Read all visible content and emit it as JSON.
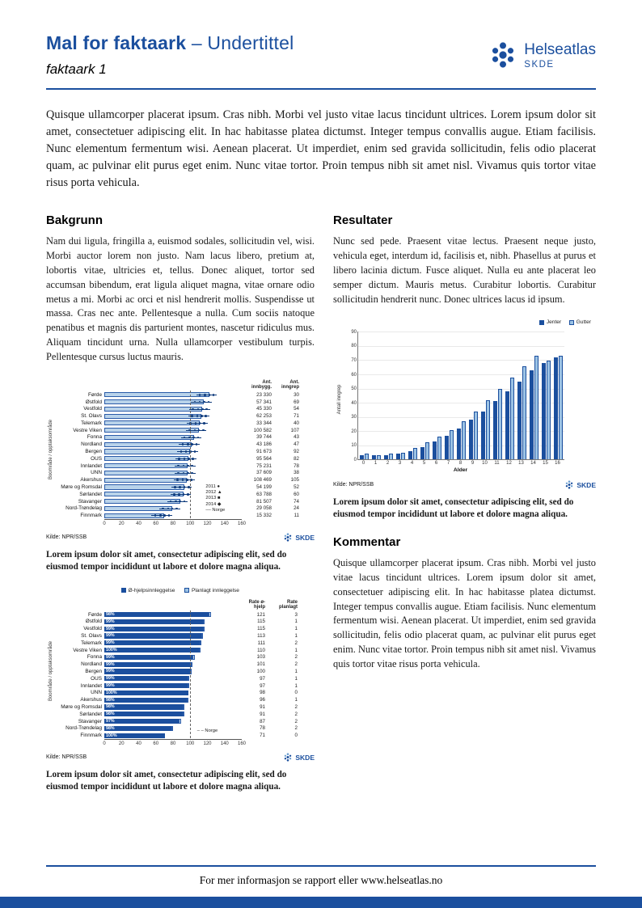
{
  "page": {
    "header": {
      "title_main": "Mal for faktaark",
      "title_rest": "– Undertittel",
      "subtitle": "faktaark 1",
      "logo": {
        "name": "Helseatlas",
        "sub": "SKDE"
      }
    },
    "skde_label": "SKDE",
    "intro": "Quisque ullamcorper placerat ipsum. Cras nibh. Morbi vel justo vitae lacus tincidunt ultrices. Lorem ipsum dolor sit amet, consectetuer adipiscing elit. In hac habitasse platea dictumst. Integer tempus convallis augue. Etiam facilisis. Nunc elementum fermentum wisi. Aenean placerat. Ut imperdiet, enim sed gravida sollicitudin, felis odio placerat quam, ac pulvinar elit purus eget enim. Nunc vitae tortor. Proin tempus nibh sit amet nisl. Vivamus quis tortor vitae risus porta vehicula.",
    "sections": {
      "bakgrunn": {
        "heading": "Bakgrunn",
        "text": "Nam dui ligula, fringilla a, euismod sodales, sollicitudin vel, wisi. Morbi auctor lorem non justo. Nam lacus libero, pretium at, lobortis vitae, ultricies et, tellus. Donec aliquet, tortor sed accumsan bibendum, erat ligula aliquet magna, vitae ornare odio metus a mi. Morbi ac orci et nisl hendrerit mollis. Suspendisse ut massa. Cras nec ante. Pellentesque a nulla. Cum sociis natoque penatibus et magnis dis parturient montes, nascetur ridiculus mus. Aliquam tincidunt urna. Nulla ullamcorper vestibulum turpis. Pellentesque cursus luctus mauris."
      },
      "resultater": {
        "heading": "Resultater",
        "text": "Nunc sed pede. Praesent vitae lectus. Praesent neque justo, vehicula eget, interdum id, facilisis et, nibh. Phasellus at purus et libero lacinia dictum. Fusce aliquet. Nulla eu ante placerat leo semper dictum. Mauris metus. Curabitur lobortis. Curabitur sollicitudin hendrerit nunc. Donec ultrices lacus id ipsum."
      },
      "kommentar": {
        "heading": "Kommentar",
        "text": "Quisque ullamcorper placerat ipsum. Cras nibh. Morbi vel justo vitae lacus tincidunt ultrices. Lorem ipsum dolor sit amet, consectetuer adipiscing elit. In hac habitasse platea dictumst. Integer tempus convallis augue. Etiam facilisis. Nunc elementum fermentum wisi. Aenean placerat. Ut imperdiet, enim sed gravida sollicitudin, felis odio placerat quam, ac pulvinar elit purus eget enim. Nunc vitae tortor. Proin tempus nibh sit amet nisl. Vivamus quis tortor vitae risus porta vehicula."
      }
    },
    "captions": {
      "chart1": "Lorem ipsum dolor sit amet, consectetur adipiscing elit, sed do eiusmod tempor incididunt ut labore et dolore magna aliqua.",
      "chart2": "Lorem ipsum dolor sit amet, consectetur adipiscing elit, sed do eiusmod tempor incididunt ut labore et dolore magna aliqua.",
      "chart3": "Lorem ipsum dolor sit amet, consectetur adipiscing elit, sed do eiusmod tempor incididunt ut labore et dolore magna aliqua."
    },
    "footer": {
      "text": "For mer informasjon se rapport eller www.helseatlas.no"
    }
  },
  "colors": {
    "brand": "#1b4f9e",
    "bar_light": "#b9d3ea",
    "bar_dark": "#1b4f9e",
    "marker": "#0f3b7c"
  },
  "chart_data": [
    {
      "id": "chart1",
      "type": "bar",
      "orientation": "horizontal",
      "ylabel": "Boområde / opptaksområde",
      "xlim": [
        0,
        160
      ],
      "xticks": [
        0,
        20,
        40,
        60,
        80,
        100,
        120,
        140,
        160
      ],
      "col_headers": [
        "Ant. innbygg.",
        "Ant. inngrep"
      ],
      "legend": [
        "2011",
        "2012",
        "2013",
        "2014",
        "Norge"
      ],
      "norge_line": 100,
      "source": "Kilde: NPR/SSB",
      "rows": [
        {
          "label": "Førde",
          "rate": 122,
          "innbygg": "23 330",
          "inngrep": "30"
        },
        {
          "label": "Østfold",
          "rate": 116,
          "innbygg": "57 341",
          "inngrep": "69"
        },
        {
          "label": "Vestfold",
          "rate": 114,
          "innbygg": "45 330",
          "inngrep": "54"
        },
        {
          "label": "St. Olavs",
          "rate": 113,
          "innbygg": "62 253",
          "inngrep": "71"
        },
        {
          "label": "Telemark",
          "rate": 111,
          "innbygg": "33 344",
          "inngrep": "40"
        },
        {
          "label": "Vestre Viken",
          "rate": 110,
          "innbygg": "100 582",
          "inngrep": "107"
        },
        {
          "label": "Fonna",
          "rate": 104,
          "innbygg": "39 744",
          "inngrep": "43"
        },
        {
          "label": "Nordland",
          "rate": 102,
          "innbygg": "43 186",
          "inngrep": "47"
        },
        {
          "label": "Bergen",
          "rate": 100,
          "innbygg": "91 673",
          "inngrep": "92"
        },
        {
          "label": "OUS",
          "rate": 98,
          "innbygg": "95 564",
          "inngrep": "82"
        },
        {
          "label": "Innlandet",
          "rate": 97,
          "innbygg": "75 231",
          "inngrep": "78"
        },
        {
          "label": "UNN",
          "rate": 97,
          "innbygg": "37 609",
          "inngrep": "38"
        },
        {
          "label": "Akershus",
          "rate": 96,
          "innbygg": "108 469",
          "inngrep": "105"
        },
        {
          "label": "Møre og Romsdal",
          "rate": 93,
          "innbygg": "54 199",
          "inngrep": "52"
        },
        {
          "label": "Sørlandet",
          "rate": 92,
          "innbygg": "63 788",
          "inngrep": "60"
        },
        {
          "label": "Stavanger",
          "rate": 88,
          "innbygg": "81 507",
          "inngrep": "74"
        },
        {
          "label": "Nord-Trøndelag",
          "rate": 79,
          "innbygg": "29 058",
          "inngrep": "24"
        },
        {
          "label": "Finnmark",
          "rate": 70,
          "innbygg": "15 332",
          "inngrep": "11"
        }
      ]
    },
    {
      "id": "chart2",
      "type": "bar",
      "orientation": "horizontal",
      "stacked": true,
      "ylabel": "Boområde / opptaksområde",
      "xlim": [
        0,
        160
      ],
      "xticks": [
        0,
        20,
        40,
        60,
        80,
        100,
        120,
        140,
        160
      ],
      "legend": [
        "Ø-hjelpsinnleggelse",
        "Planlagt innleggelse"
      ],
      "col_headers": [
        "Rate ø-hjelp",
        "Rate planlagt"
      ],
      "norge_label": "Norge",
      "norge_line": 100,
      "source": "Kilde: NPR/SSB",
      "rows": [
        {
          "label": "Førde",
          "pct": "98%",
          "rate_ohjelp": 121,
          "rate_planlagt": 3
        },
        {
          "label": "Østfold",
          "pct": "99%",
          "rate_ohjelp": 115,
          "rate_planlagt": 1
        },
        {
          "label": "Vestfold",
          "pct": "99%",
          "rate_ohjelp": 115,
          "rate_planlagt": 1
        },
        {
          "label": "St. Olavs",
          "pct": "99%",
          "rate_ohjelp": 113,
          "rate_planlagt": 1
        },
        {
          "label": "Telemark",
          "pct": "99%",
          "rate_ohjelp": 111,
          "rate_planlagt": 2
        },
        {
          "label": "Vestre Viken",
          "pct": "100%",
          "rate_ohjelp": 110,
          "rate_planlagt": 1
        },
        {
          "label": "Fonna",
          "pct": "99%",
          "rate_ohjelp": 103,
          "rate_planlagt": 2
        },
        {
          "label": "Nordland",
          "pct": "99%",
          "rate_ohjelp": 101,
          "rate_planlagt": 2
        },
        {
          "label": "Bergen",
          "pct": "99%",
          "rate_ohjelp": 100,
          "rate_planlagt": 1
        },
        {
          "label": "OUS",
          "pct": "99%",
          "rate_ohjelp": 97,
          "rate_planlagt": 1
        },
        {
          "label": "Innlandet",
          "pct": "99%",
          "rate_ohjelp": 97,
          "rate_planlagt": 1
        },
        {
          "label": "UNN",
          "pct": "100%",
          "rate_ohjelp": 98,
          "rate_planlagt": 0
        },
        {
          "label": "Akershus",
          "pct": "98%",
          "rate_ohjelp": 96,
          "rate_planlagt": 1
        },
        {
          "label": "Møre og Romsdal",
          "pct": "98%",
          "rate_ohjelp": 91,
          "rate_planlagt": 2
        },
        {
          "label": "Sørlandet",
          "pct": "98%",
          "rate_ohjelp": 91,
          "rate_planlagt": 2
        },
        {
          "label": "Stavanger",
          "pct": "97%",
          "rate_ohjelp": 87,
          "rate_planlagt": 2
        },
        {
          "label": "Nord-Trøndelag",
          "pct": "98%",
          "rate_ohjelp": 78,
          "rate_planlagt": 2
        },
        {
          "label": "Finnmark",
          "pct": "100%",
          "rate_ohjelp": 71,
          "rate_planlagt": 0
        }
      ]
    },
    {
      "id": "chart3",
      "type": "bar",
      "orientation": "vertical",
      "xlabel": "Alder",
      "ylabel": "Antall inngrep",
      "ylim": [
        0,
        90
      ],
      "yticks": [
        0,
        10,
        20,
        30,
        40,
        50,
        60,
        70,
        80,
        90
      ],
      "categories": [
        "0",
        "1",
        "2",
        "3",
        "4",
        "5",
        "6",
        "7",
        "8",
        "9",
        "10",
        "11",
        "12",
        "13",
        "14",
        "15",
        "16"
      ],
      "series": [
        {
          "name": "Jenter",
          "color": "#1b4f9e",
          "values": [
            3,
            3,
            3,
            4,
            6,
            9,
            13,
            17,
            22,
            28,
            34,
            41,
            48,
            55,
            63,
            68,
            72
          ]
        },
        {
          "name": "Gutter",
          "color": "#9cc3e5",
          "values": [
            4,
            3,
            4,
            5,
            8,
            12,
            16,
            21,
            27,
            34,
            42,
            50,
            58,
            66,
            73,
            70,
            73
          ]
        }
      ],
      "source": "Kilde: NPR/SSB"
    }
  ]
}
